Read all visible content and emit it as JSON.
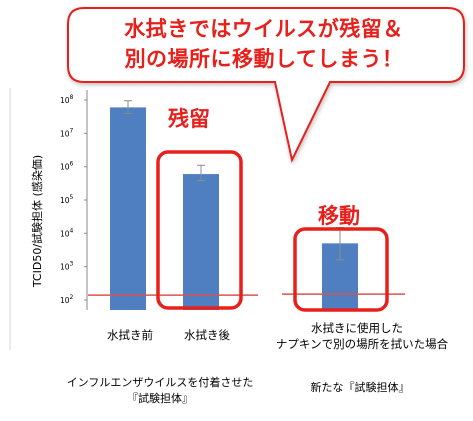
{
  "callout": {
    "line1": "水拭きではウイルスが残留＆",
    "line2": "別の場所に移動してしまう！"
  },
  "annotations": {
    "residual": "残留",
    "moved": "移動"
  },
  "footer": {
    "left_line1": "インフルエンザウイルスを付着させた",
    "left_line2": "『試験担体』",
    "right": "新たな『試験担体』"
  },
  "colors": {
    "callout_text": "#e8201c",
    "highlight_box": "#e8201c",
    "bar": "#4f7fc0",
    "detection_limit_line": "#d9534f"
  },
  "chart_data": {
    "type": "bar",
    "ylabel": "TCID50/試験担体 (感染価)",
    "yscale": "log",
    "ylim": [
      100,
      100000000
    ],
    "yticks": [
      "10^2",
      "10^3",
      "10^4",
      "10^5",
      "10^6",
      "10^7",
      "10^8"
    ],
    "categories": [
      "水拭き前",
      "水拭き後",
      "水拭きに使用したナプキンで別の場所を拭いた場合"
    ],
    "category_labels": [
      {
        "lines": [
          "水拭き前"
        ]
      },
      {
        "lines": [
          "水拭き後"
        ]
      },
      {
        "lines": [
          "水拭きに使用した",
          "ナプキンで別の場所を拭いた場合"
        ]
      }
    ],
    "values": [
      60000000,
      600000,
      5000
    ],
    "error_bars": [
      [
        40000000,
        95000000
      ],
      [
        380000,
        1100000
      ],
      [
        1600,
        15000
      ]
    ],
    "reference_line": {
      "value": 140
    }
  }
}
